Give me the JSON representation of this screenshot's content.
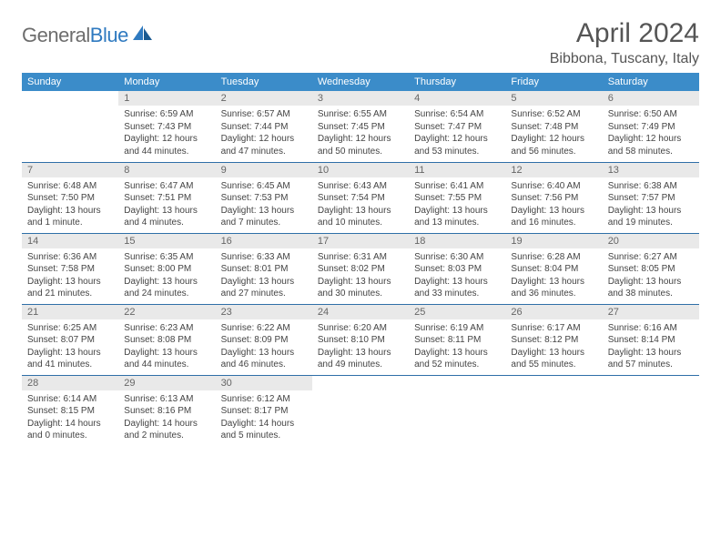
{
  "logo": {
    "text_gray": "General",
    "text_blue": "Blue"
  },
  "header": {
    "title": "April 2024",
    "location": "Bibbona, Tuscany, Italy"
  },
  "style": {
    "header_bg": "#3b8cc9",
    "header_text": "#ffffff",
    "daynum_bg": "#e9e9e9",
    "daynum_text": "#666666",
    "body_text": "#444444",
    "row_border": "#2f6fa8",
    "logo_gray": "#6d6d6d",
    "logo_blue": "#2f7ac0",
    "title_color": "#555555",
    "title_fontsize": 30,
    "location_fontsize": 16,
    "th_fontsize": 11,
    "cell_fontsize": 10
  },
  "columns": [
    "Sunday",
    "Monday",
    "Tuesday",
    "Wednesday",
    "Thursday",
    "Friday",
    "Saturday"
  ],
  "weeks": [
    [
      null,
      {
        "n": "1",
        "sr": "6:59 AM",
        "ss": "7:43 PM",
        "dl": "12 hours and 44 minutes."
      },
      {
        "n": "2",
        "sr": "6:57 AM",
        "ss": "7:44 PM",
        "dl": "12 hours and 47 minutes."
      },
      {
        "n": "3",
        "sr": "6:55 AM",
        "ss": "7:45 PM",
        "dl": "12 hours and 50 minutes."
      },
      {
        "n": "4",
        "sr": "6:54 AM",
        "ss": "7:47 PM",
        "dl": "12 hours and 53 minutes."
      },
      {
        "n": "5",
        "sr": "6:52 AM",
        "ss": "7:48 PM",
        "dl": "12 hours and 56 minutes."
      },
      {
        "n": "6",
        "sr": "6:50 AM",
        "ss": "7:49 PM",
        "dl": "12 hours and 58 minutes."
      }
    ],
    [
      {
        "n": "7",
        "sr": "6:48 AM",
        "ss": "7:50 PM",
        "dl": "13 hours and 1 minute."
      },
      {
        "n": "8",
        "sr": "6:47 AM",
        "ss": "7:51 PM",
        "dl": "13 hours and 4 minutes."
      },
      {
        "n": "9",
        "sr": "6:45 AM",
        "ss": "7:53 PM",
        "dl": "13 hours and 7 minutes."
      },
      {
        "n": "10",
        "sr": "6:43 AM",
        "ss": "7:54 PM",
        "dl": "13 hours and 10 minutes."
      },
      {
        "n": "11",
        "sr": "6:41 AM",
        "ss": "7:55 PM",
        "dl": "13 hours and 13 minutes."
      },
      {
        "n": "12",
        "sr": "6:40 AM",
        "ss": "7:56 PM",
        "dl": "13 hours and 16 minutes."
      },
      {
        "n": "13",
        "sr": "6:38 AM",
        "ss": "7:57 PM",
        "dl": "13 hours and 19 minutes."
      }
    ],
    [
      {
        "n": "14",
        "sr": "6:36 AM",
        "ss": "7:58 PM",
        "dl": "13 hours and 21 minutes."
      },
      {
        "n": "15",
        "sr": "6:35 AM",
        "ss": "8:00 PM",
        "dl": "13 hours and 24 minutes."
      },
      {
        "n": "16",
        "sr": "6:33 AM",
        "ss": "8:01 PM",
        "dl": "13 hours and 27 minutes."
      },
      {
        "n": "17",
        "sr": "6:31 AM",
        "ss": "8:02 PM",
        "dl": "13 hours and 30 minutes."
      },
      {
        "n": "18",
        "sr": "6:30 AM",
        "ss": "8:03 PM",
        "dl": "13 hours and 33 minutes."
      },
      {
        "n": "19",
        "sr": "6:28 AM",
        "ss": "8:04 PM",
        "dl": "13 hours and 36 minutes."
      },
      {
        "n": "20",
        "sr": "6:27 AM",
        "ss": "8:05 PM",
        "dl": "13 hours and 38 minutes."
      }
    ],
    [
      {
        "n": "21",
        "sr": "6:25 AM",
        "ss": "8:07 PM",
        "dl": "13 hours and 41 minutes."
      },
      {
        "n": "22",
        "sr": "6:23 AM",
        "ss": "8:08 PM",
        "dl": "13 hours and 44 minutes."
      },
      {
        "n": "23",
        "sr": "6:22 AM",
        "ss": "8:09 PM",
        "dl": "13 hours and 46 minutes."
      },
      {
        "n": "24",
        "sr": "6:20 AM",
        "ss": "8:10 PM",
        "dl": "13 hours and 49 minutes."
      },
      {
        "n": "25",
        "sr": "6:19 AM",
        "ss": "8:11 PM",
        "dl": "13 hours and 52 minutes."
      },
      {
        "n": "26",
        "sr": "6:17 AM",
        "ss": "8:12 PM",
        "dl": "13 hours and 55 minutes."
      },
      {
        "n": "27",
        "sr": "6:16 AM",
        "ss": "8:14 PM",
        "dl": "13 hours and 57 minutes."
      }
    ],
    [
      {
        "n": "28",
        "sr": "6:14 AM",
        "ss": "8:15 PM",
        "dl": "14 hours and 0 minutes."
      },
      {
        "n": "29",
        "sr": "6:13 AM",
        "ss": "8:16 PM",
        "dl": "14 hours and 2 minutes."
      },
      {
        "n": "30",
        "sr": "6:12 AM",
        "ss": "8:17 PM",
        "dl": "14 hours and 5 minutes."
      },
      null,
      null,
      null,
      null
    ]
  ],
  "labels": {
    "sunrise": "Sunrise: ",
    "sunset": "Sunset: ",
    "daylight": "Daylight: "
  }
}
